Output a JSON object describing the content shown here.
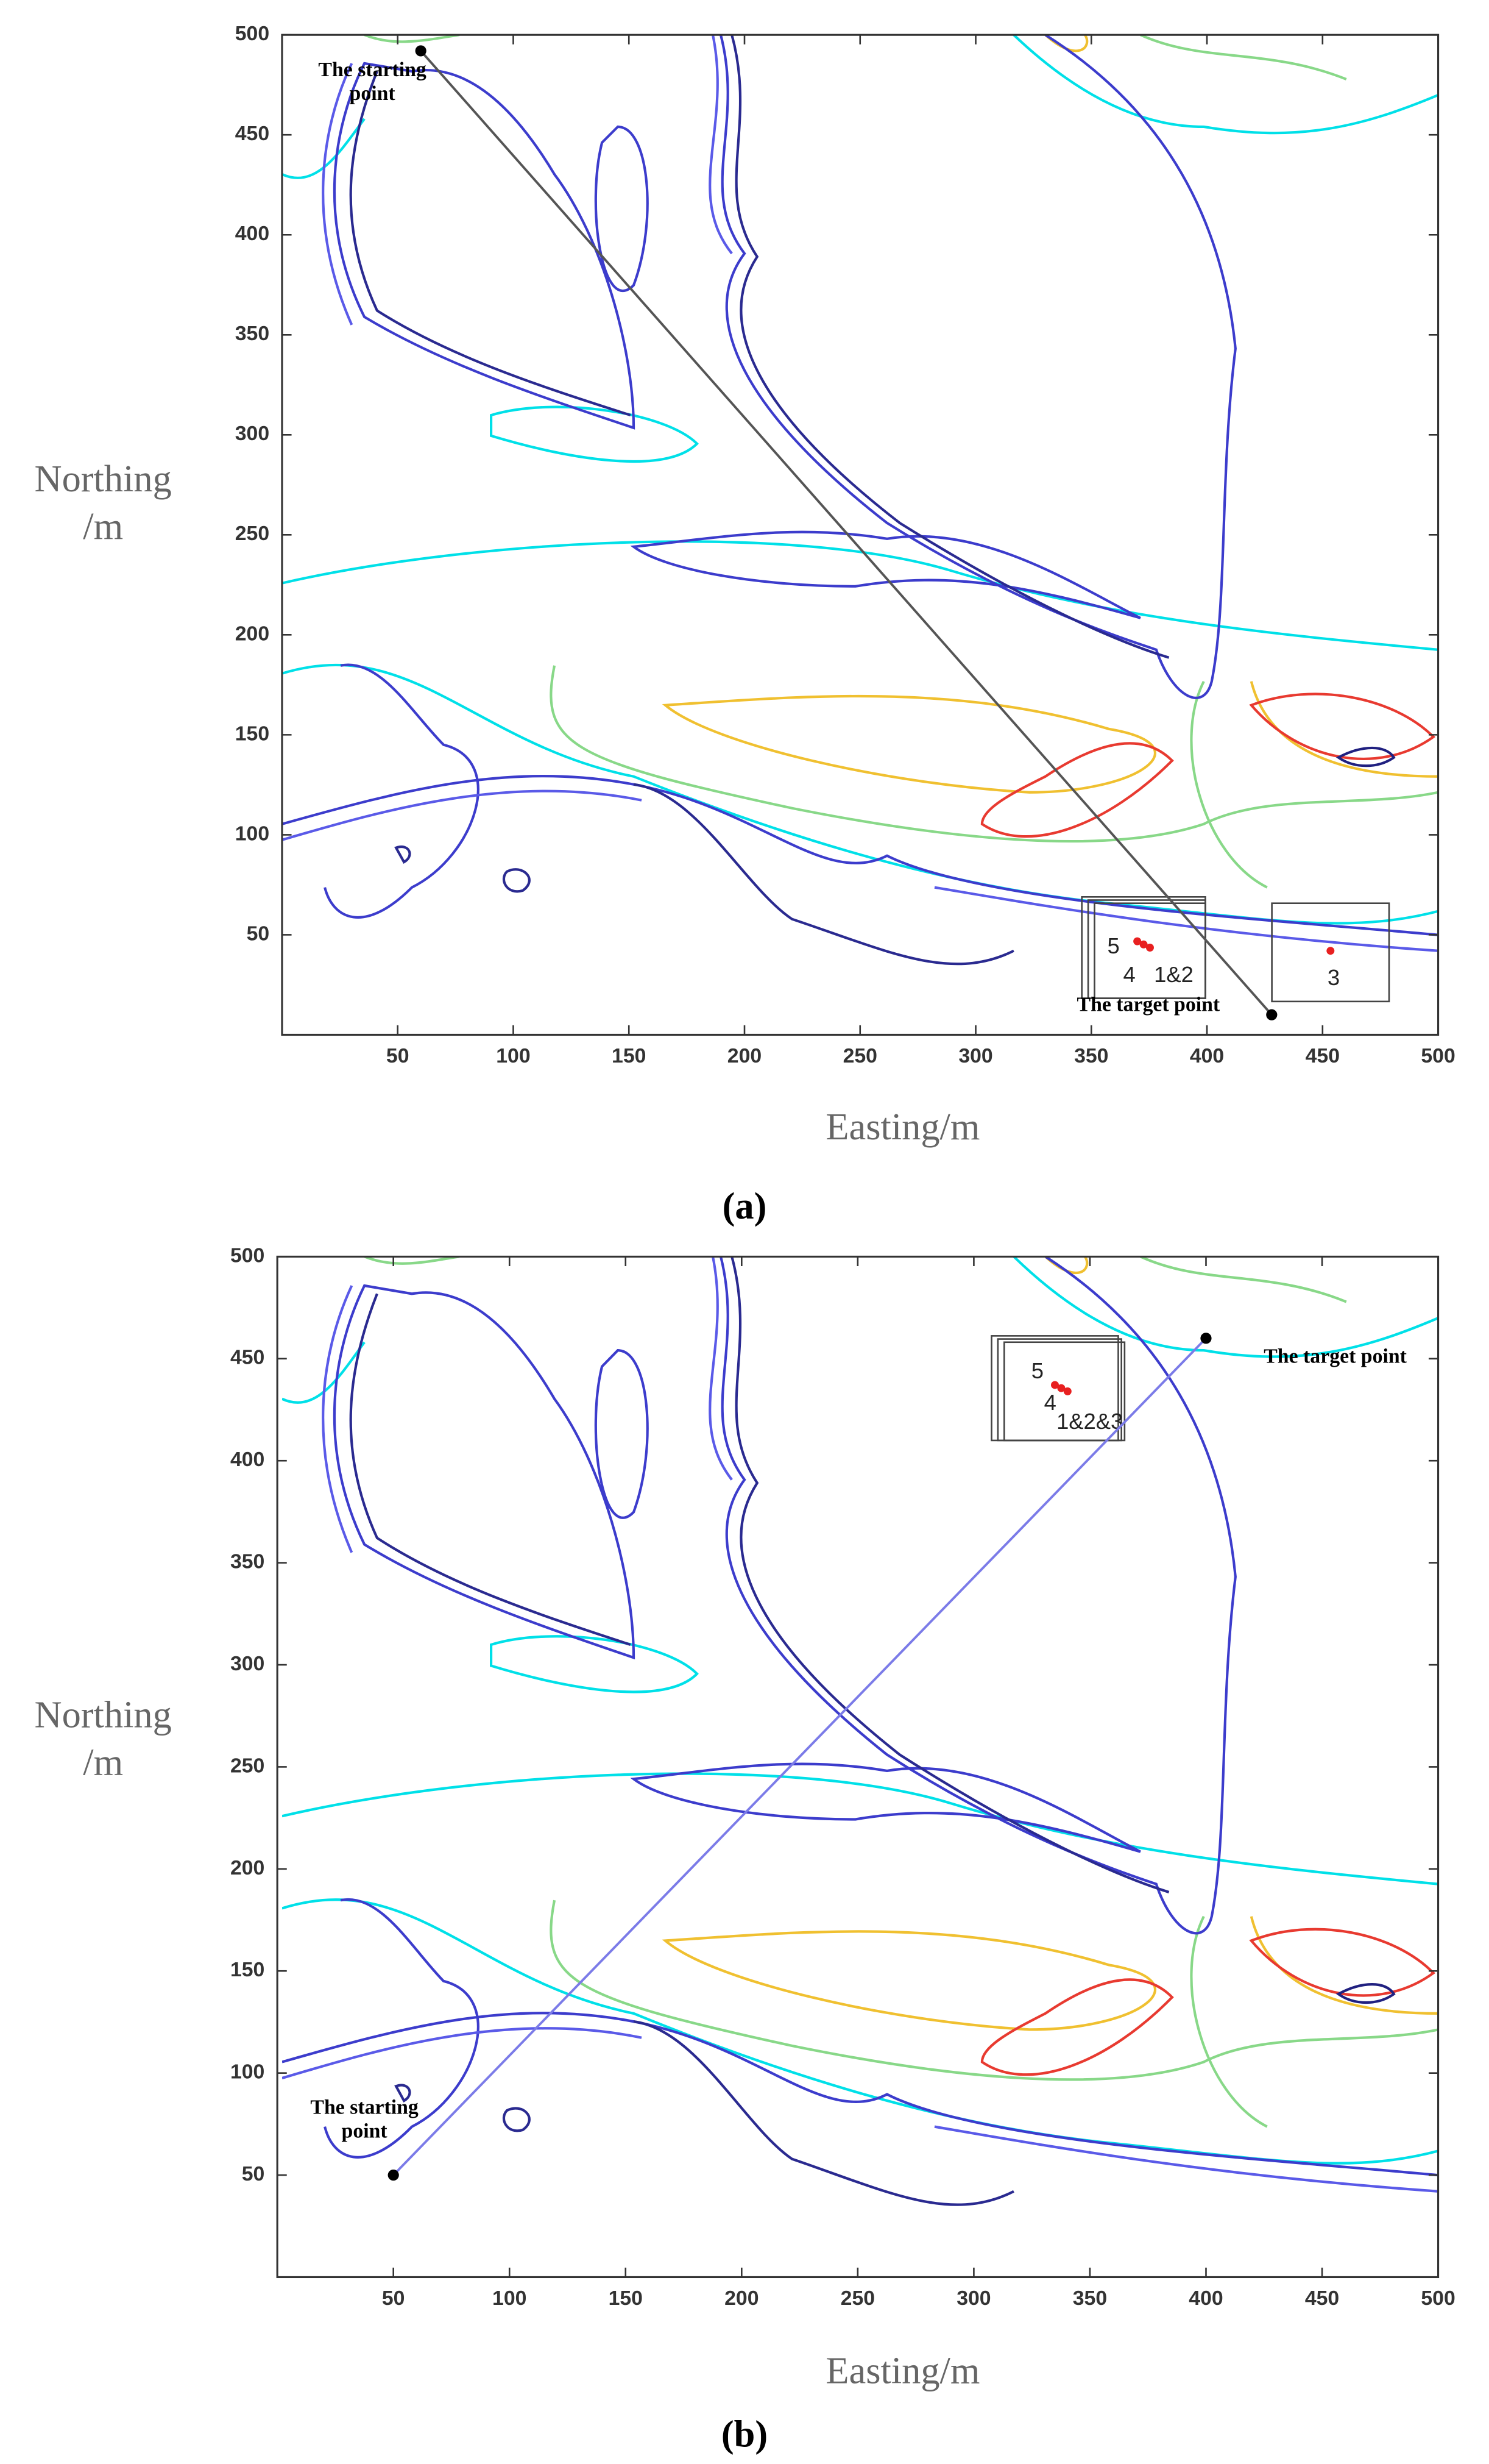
{
  "chart_data": [
    {
      "type": "contour",
      "panel_label": "(a)",
      "x_label": "Easting/m",
      "y_label": "Northing /m",
      "xlim": [
        0,
        500
      ],
      "ylim": [
        0,
        500
      ],
      "xticks": [
        50,
        100,
        150,
        200,
        250,
        300,
        350,
        400,
        450,
        500
      ],
      "yticks": [
        50,
        100,
        150,
        200,
        250,
        300,
        350,
        400,
        450,
        500
      ],
      "start": {
        "label": "The starting point",
        "x": 60,
        "y": 492
      },
      "target": {
        "label": "The target point",
        "x": 428,
        "y": 10
      },
      "path_color": "#555555",
      "box_labels": [
        "5",
        "4",
        "1&2",
        "3"
      ]
    },
    {
      "type": "contour",
      "panel_label": "(b)",
      "x_label": "Easting/m",
      "y_label": "Northing /m",
      "xlim": [
        0,
        500
      ],
      "ylim": [
        0,
        500
      ],
      "xticks": [
        50,
        100,
        150,
        200,
        250,
        300,
        350,
        400,
        450,
        500
      ],
      "yticks": [
        50,
        100,
        150,
        200,
        250,
        300,
        350,
        400,
        450,
        500
      ],
      "start": {
        "label": "The starting point",
        "x": 50,
        "y": 50
      },
      "target": {
        "label": "The target point",
        "x": 400,
        "y": 460
      },
      "path_color": "#7b7be8",
      "box_labels": [
        "5",
        "4",
        "1&2&3"
      ]
    }
  ]
}
